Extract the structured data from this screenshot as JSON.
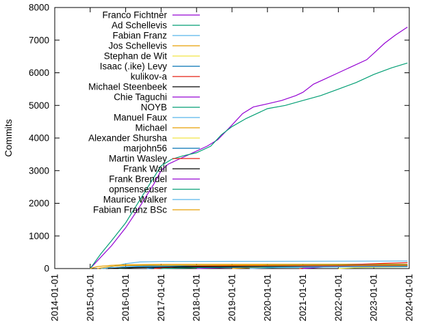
{
  "chart_data": {
    "type": "line",
    "title": "",
    "xlabel": "",
    "ylabel": "Commits",
    "xlim": [
      2014,
      2024
    ],
    "ylim": [
      0,
      8000
    ],
    "grid": false,
    "legend_position": "top-left-inside",
    "x_unit": "decimal_year",
    "x_ticks": [
      2014,
      2015,
      2016,
      2017,
      2018,
      2019,
      2020,
      2021,
      2022,
      2023,
      2024
    ],
    "x_tick_labels": [
      "2014-01-01",
      "2015-01-01",
      "2016-01-01",
      "2017-01-01",
      "2018-01-01",
      "2019-01-01",
      "2020-01-01",
      "2021-01-01",
      "2022-01-01",
      "2023-01-01",
      "2024-01-01"
    ],
    "y_ticks": [
      0,
      1000,
      2000,
      3000,
      4000,
      5000,
      6000,
      7000,
      8000
    ],
    "series": [
      {
        "name": "Franco Fichtner",
        "color": "#9400d3",
        "points": [
          [
            2015.0,
            0
          ],
          [
            2015.1,
            120
          ],
          [
            2015.3,
            350
          ],
          [
            2015.6,
            700
          ],
          [
            2016.0,
            1250
          ],
          [
            2016.4,
            1900
          ],
          [
            2016.8,
            2600
          ],
          [
            2017.0,
            3000
          ],
          [
            2017.2,
            3200
          ],
          [
            2017.5,
            3350
          ],
          [
            2017.8,
            3500
          ],
          [
            2018.0,
            3600
          ],
          [
            2018.3,
            3750
          ],
          [
            2018.6,
            3950
          ],
          [
            2019.0,
            4400
          ],
          [
            2019.3,
            4750
          ],
          [
            2019.6,
            4950
          ],
          [
            2020.0,
            5050
          ],
          [
            2020.4,
            5150
          ],
          [
            2020.8,
            5300
          ],
          [
            2021.0,
            5400
          ],
          [
            2021.3,
            5650
          ],
          [
            2021.6,
            5800
          ],
          [
            2022.0,
            6000
          ],
          [
            2022.4,
            6200
          ],
          [
            2022.8,
            6400
          ],
          [
            2023.0,
            6600
          ],
          [
            2023.3,
            6900
          ],
          [
            2023.6,
            7150
          ],
          [
            2023.95,
            7400
          ]
        ]
      },
      {
        "name": "Ad Schellevis",
        "color": "#009e73",
        "points": [
          [
            2015.0,
            0
          ],
          [
            2015.1,
            150
          ],
          [
            2015.3,
            450
          ],
          [
            2015.6,
            850
          ],
          [
            2016.0,
            1400
          ],
          [
            2016.4,
            2100
          ],
          [
            2016.8,
            2800
          ],
          [
            2017.0,
            3150
          ],
          [
            2017.3,
            3350
          ],
          [
            2017.6,
            3450
          ],
          [
            2018.0,
            3550
          ],
          [
            2018.4,
            3750
          ],
          [
            2018.7,
            4100
          ],
          [
            2019.0,
            4350
          ],
          [
            2019.4,
            4600
          ],
          [
            2019.8,
            4800
          ],
          [
            2020.0,
            4900
          ],
          [
            2020.5,
            5000
          ],
          [
            2021.0,
            5150
          ],
          [
            2021.5,
            5300
          ],
          [
            2022.0,
            5500
          ],
          [
            2022.5,
            5700
          ],
          [
            2023.0,
            5950
          ],
          [
            2023.5,
            6150
          ],
          [
            2023.95,
            6300
          ]
        ]
      },
      {
        "name": "Fabian Franz",
        "color": "#56b4e9",
        "points": [
          [
            2015.4,
            0
          ],
          [
            2015.7,
            80
          ],
          [
            2016.0,
            150
          ],
          [
            2016.4,
            200
          ],
          [
            2017.0,
            215
          ],
          [
            2019.0,
            220
          ],
          [
            2023.95,
            230
          ]
        ]
      },
      {
        "name": "Jos Schellevis",
        "color": "#e69f00",
        "points": [
          [
            2015.0,
            0
          ],
          [
            2015.2,
            60
          ],
          [
            2015.6,
            100
          ],
          [
            2016.0,
            120
          ],
          [
            2017.0,
            130
          ],
          [
            2023.95,
            135
          ]
        ]
      },
      {
        "name": "Stephan de Wit",
        "color": "#f0e442",
        "points": [
          [
            2015.5,
            0
          ],
          [
            2016.0,
            40
          ],
          [
            2017.0,
            60
          ],
          [
            2018.5,
            75
          ],
          [
            2023.95,
            80
          ]
        ]
      },
      {
        "name": "Isaac (.ike) Levy",
        "color": "#0072b2",
        "points": [
          [
            2015.5,
            0
          ],
          [
            2015.9,
            50
          ],
          [
            2016.5,
            80
          ],
          [
            2017.5,
            90
          ],
          [
            2023.95,
            95
          ]
        ]
      },
      {
        "name": "kulikov-a",
        "color": "#e51e10",
        "points": [
          [
            2020.9,
            0
          ],
          [
            2021.3,
            50
          ],
          [
            2021.8,
            90
          ],
          [
            2022.3,
            120
          ],
          [
            2022.8,
            140
          ],
          [
            2023.3,
            160
          ],
          [
            2023.95,
            180
          ]
        ]
      },
      {
        "name": "Michael Steenbeek",
        "color": "#000000",
        "points": [
          [
            2017.0,
            0
          ],
          [
            2017.5,
            25
          ],
          [
            2018.5,
            45
          ],
          [
            2020.0,
            55
          ],
          [
            2023.95,
            65
          ]
        ]
      },
      {
        "name": "Chie Taguchi",
        "color": "#9400d3",
        "points": [
          [
            2021.0,
            0
          ],
          [
            2021.5,
            40
          ],
          [
            2022.0,
            70
          ],
          [
            2023.0,
            90
          ],
          [
            2023.95,
            100
          ]
        ]
      },
      {
        "name": "NOYB",
        "color": "#009e73",
        "points": [
          [
            2015.8,
            0
          ],
          [
            2016.3,
            40
          ],
          [
            2017.0,
            60
          ],
          [
            2018.0,
            75
          ],
          [
            2023.95,
            85
          ]
        ]
      },
      {
        "name": "Manuel Faux",
        "color": "#56b4e9",
        "points": [
          [
            2015.3,
            0
          ],
          [
            2015.8,
            40
          ],
          [
            2016.5,
            60
          ],
          [
            2017.5,
            70
          ],
          [
            2023.95,
            75
          ]
        ]
      },
      {
        "name": "Michael",
        "color": "#e69f00",
        "points": [
          [
            2019.0,
            0
          ],
          [
            2019.5,
            30
          ],
          [
            2020.5,
            50
          ],
          [
            2021.5,
            60
          ],
          [
            2023.95,
            65
          ]
        ]
      },
      {
        "name": "Alexander Shursha",
        "color": "#f0e442",
        "points": [
          [
            2022.0,
            0
          ],
          [
            2022.5,
            25
          ],
          [
            2023.0,
            40
          ],
          [
            2023.95,
            55
          ]
        ]
      },
      {
        "name": "marjohn56",
        "color": "#0072b2",
        "points": [
          [
            2016.6,
            0
          ],
          [
            2017.0,
            40
          ],
          [
            2017.6,
            70
          ],
          [
            2018.5,
            90
          ],
          [
            2020.0,
            105
          ],
          [
            2023.95,
            115
          ]
        ]
      },
      {
        "name": "Martin Wasley",
        "color": "#e51e10",
        "points": [
          [
            2016.8,
            0
          ],
          [
            2017.3,
            40
          ],
          [
            2018.0,
            70
          ],
          [
            2019.0,
            85
          ],
          [
            2023.95,
            95
          ]
        ]
      },
      {
        "name": "Frank Wall",
        "color": "#000000",
        "points": [
          [
            2015.5,
            0
          ],
          [
            2016.2,
            30
          ],
          [
            2017.5,
            50
          ],
          [
            2019.0,
            60
          ],
          [
            2023.95,
            65
          ]
        ]
      },
      {
        "name": "Frank Brendel",
        "color": "#9400d3",
        "points": [
          [
            2018.0,
            0
          ],
          [
            2018.8,
            30
          ],
          [
            2019.8,
            45
          ],
          [
            2021.0,
            55
          ],
          [
            2023.95,
            60
          ]
        ]
      },
      {
        "name": "opnsenseuser",
        "color": "#009e73",
        "points": [
          [
            2017.0,
            0
          ],
          [
            2018.0,
            30
          ],
          [
            2019.5,
            45
          ],
          [
            2021.0,
            50
          ],
          [
            2023.95,
            55
          ]
        ]
      },
      {
        "name": "Maurice Walker",
        "color": "#56b4e9",
        "points": [
          [
            2019.5,
            0
          ],
          [
            2020.3,
            30
          ],
          [
            2021.5,
            45
          ],
          [
            2022.5,
            55
          ],
          [
            2023.95,
            60
          ]
        ]
      },
      {
        "name": "Fabian Franz BSc",
        "color": "#e69f00",
        "points": [
          [
            2015.2,
            0
          ],
          [
            2015.6,
            70
          ],
          [
            2016.0,
            95
          ],
          [
            2016.5,
            100
          ],
          [
            2023.95,
            105
          ]
        ]
      }
    ]
  }
}
